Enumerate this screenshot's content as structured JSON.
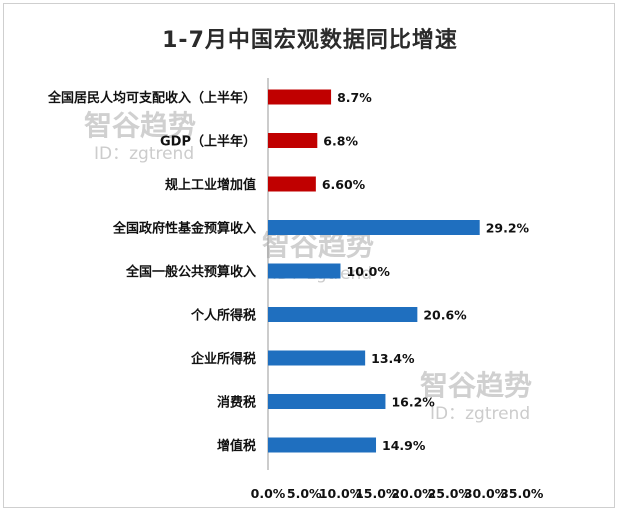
{
  "chart_data": {
    "type": "bar",
    "orientation": "horizontal",
    "title": "1-7月中国宏观数据同比增速",
    "categories": [
      "全国居民人均可支配收入（上半年）",
      "GDP（上半年）",
      "规上工业增加值",
      "全国政府性基金预算收入",
      "全国一般公共预算收入",
      "个人所得税",
      "企业所得税",
      "消费税",
      "增值税"
    ],
    "values": [
      8.7,
      6.8,
      6.6,
      29.2,
      10.0,
      20.6,
      13.4,
      16.2,
      14.9
    ],
    "value_labels": [
      "8.7%",
      "6.8%",
      "6.60%",
      "29.2%",
      "10.0%",
      "20.6%",
      "13.4%",
      "16.2%",
      "14.9%"
    ],
    "bar_colors": [
      "#c00000",
      "#c00000",
      "#c00000",
      "#1f6fbf",
      "#1f6fbf",
      "#1f6fbf",
      "#1f6fbf",
      "#1f6fbf",
      "#1f6fbf"
    ],
    "xlim": [
      0,
      35
    ],
    "x_ticks": [
      "0.0%",
      "5.0%",
      "10.0%",
      "15.0%",
      "20.0%",
      "25.0%",
      "30.0%",
      "35.0%"
    ],
    "grid": false
  },
  "watermarks": [
    {
      "text": "智谷趋势",
      "sub": "ID：zgtrend"
    },
    {
      "text": "智谷趋势",
      "sub": "ID：zgtrend"
    },
    {
      "text": "智谷趋势",
      "sub": "ID：zgtrend"
    }
  ]
}
